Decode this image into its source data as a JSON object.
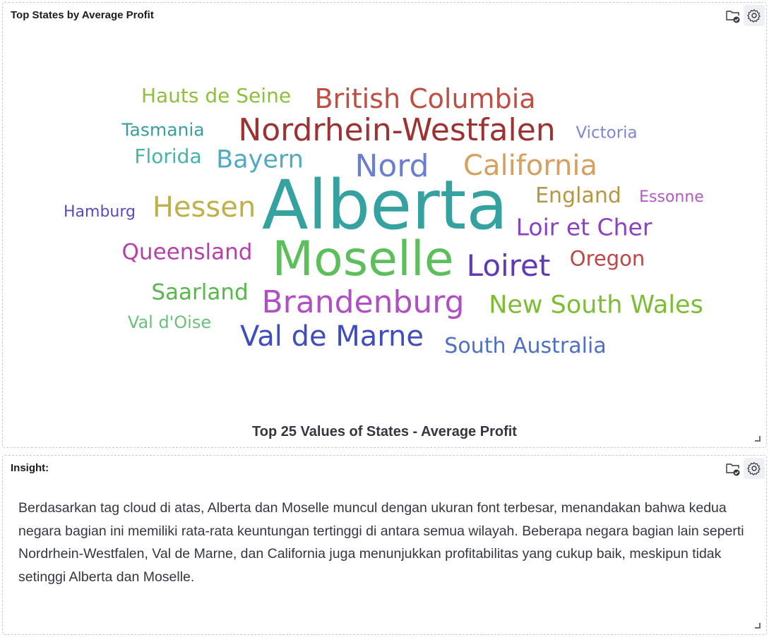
{
  "cloud_panel": {
    "title": "Top States by Average Profit",
    "caption": "Top 25 Values of States - Average Profit",
    "icons": [
      "folder-check-icon",
      "gear-icon"
    ]
  },
  "insight_panel": {
    "title": "Insight:",
    "text": "Berdasarkan tag cloud di atas, Alberta dan Moselle muncul dengan ukuran font terbesar, menandakan bahwa kedua negara bagian ini memiliki rata-rata keuntungan tertinggi di antara semua wilayah. Beberapa negara bagian lain seperti Nordrhein-Westfalen, Val de Marne, dan California juga menunjukkan profitabilitas yang cukup baik, meskipun tidak setinggi Alberta dan Moselle.",
    "icons": [
      "folder-check-icon",
      "gear-icon"
    ]
  },
  "chart_data": {
    "type": "tag-cloud",
    "title": "Top States by Average Profit",
    "caption": "Top 25 Values of States - Average Profit",
    "words": [
      {
        "text": "Alberta",
        "rank": 1,
        "color": "#36a2a0"
      },
      {
        "text": "Moselle",
        "rank": 2,
        "color": "#5cbf5c"
      },
      {
        "text": "Nordrhein-Westfalen",
        "rank": 3,
        "color": "#9c3232"
      },
      {
        "text": "Brandenburg",
        "rank": 4,
        "color": "#b04fc3"
      },
      {
        "text": "Val de Marne",
        "rank": 5,
        "color": "#3f4dbf"
      },
      {
        "text": "Nord",
        "rank": 6,
        "color": "#6b7fd1"
      },
      {
        "text": "British Columbia",
        "rank": 7,
        "color": "#c04f43"
      },
      {
        "text": "California",
        "rank": 8,
        "color": "#d8a05f"
      },
      {
        "text": "Loiret",
        "rank": 9,
        "color": "#6039b8"
      },
      {
        "text": "Hessen",
        "rank": 10,
        "color": "#bfb04a"
      },
      {
        "text": "New South Wales",
        "rank": 11,
        "color": "#7cbd34"
      },
      {
        "text": "Bayern",
        "rank": 12,
        "color": "#51a9c2"
      },
      {
        "text": "Loir et Cher",
        "rank": 13,
        "color": "#8b41c2"
      },
      {
        "text": "Queensland",
        "rank": 14,
        "color": "#b541a8"
      },
      {
        "text": "Saarland",
        "rank": 15,
        "color": "#58b84c"
      },
      {
        "text": "South Australia",
        "rank": 16,
        "color": "#4f6fc8"
      },
      {
        "text": "England",
        "rank": 17,
        "color": "#b59640"
      },
      {
        "text": "Oregon",
        "rank": 18,
        "color": "#c04545"
      },
      {
        "text": "Hauts de Seine",
        "rank": 19,
        "color": "#8ebf3d"
      },
      {
        "text": "Florida",
        "rank": 20,
        "color": "#46b5a8"
      },
      {
        "text": "Tasmania",
        "rank": 21,
        "color": "#3a9e9a"
      },
      {
        "text": "Val d'Oise",
        "rank": 22,
        "color": "#6bbf7a"
      },
      {
        "text": "Victoria",
        "rank": 23,
        "color": "#7d86d6"
      },
      {
        "text": "Essonne",
        "rank": 24,
        "color": "#b05bc2"
      },
      {
        "text": "Hamburg",
        "rank": 25,
        "color": "#5a4bbf"
      }
    ]
  }
}
